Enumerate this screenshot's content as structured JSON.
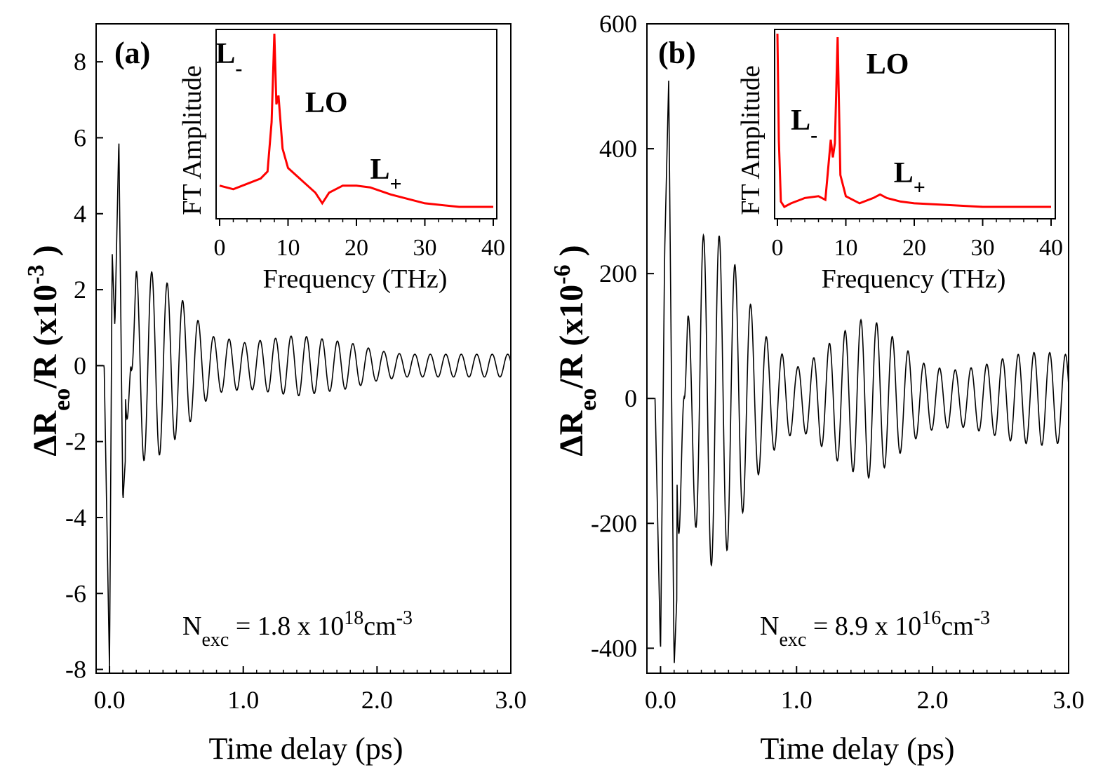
{
  "chart_data": [
    {
      "type": "line",
      "panel_label": "(a)",
      "xlabel": "Time delay (ps)",
      "ylabel": "ΔR_eo/R (x10^-3 )",
      "ylabel_parts": {
        "delta_r": "ΔR",
        "sub": "eo",
        "rest": "/R (x10",
        "exp": "-3",
        "close": " )"
      },
      "xlim": [
        -0.1,
        3.0
      ],
      "ylim": [
        -8.1,
        9.0
      ],
      "xticks": [
        "0.0",
        "1.0",
        "2.0",
        "3.0"
      ],
      "xtick_values": [
        0.0,
        1.0,
        2.0,
        3.0
      ],
      "yticks": [
        "-8",
        "-6",
        "-4",
        "-2",
        "0",
        "2",
        "4",
        "6",
        "8"
      ],
      "ytick_values": [
        -8,
        -6,
        -4,
        -2,
        0,
        2,
        4,
        6,
        8
      ],
      "line_color": "#000000",
      "series": [
        {
          "x": [
            -0.1,
            -0.04,
            0.0,
            0.02,
            0.04,
            0.07,
            0.1,
            0.2,
            0.3,
            0.4,
            0.5,
            0.6,
            0.7,
            0.8,
            0.9,
            1.0,
            1.2,
            1.4,
            1.6,
            1.8,
            2.0,
            2.2,
            2.4,
            2.6,
            2.8,
            3.0
          ],
          "y": [
            0.0,
            0.0,
            -8.0,
            3.0,
            1.0,
            6.0,
            -3.6,
            2.5,
            2.5,
            2.3,
            1.9,
            1.5,
            1.0,
            0.7,
            0.7,
            0.6,
            0.7,
            0.8,
            0.7,
            0.6,
            0.4,
            0.3,
            0.3,
            0.3,
            0.3,
            0.3
          ]
        }
      ],
      "annotation": {
        "prefix": "N",
        "sub": "exc",
        "mid": " = 1.8 x 10",
        "sup1": "18",
        "unit": "cm",
        "sup2": "-3"
      },
      "inset": {
        "xlabel": "Frequency (THz)",
        "ylabel": "FT Amplitude",
        "xlim": [
          0,
          40
        ],
        "xticks": [
          "0",
          "10",
          "20",
          "30",
          "40"
        ],
        "xtick_values": [
          0,
          10,
          20,
          30,
          40
        ],
        "line_color": "#ff0000",
        "x": [
          0,
          2,
          4,
          6,
          7,
          7.6,
          8.0,
          8.3,
          8.6,
          8.9,
          9.2,
          10,
          12,
          14,
          15,
          16,
          18,
          20,
          22,
          25,
          30,
          35,
          40
        ],
        "y": [
          0.14,
          0.12,
          0.15,
          0.18,
          0.22,
          0.5,
          1.0,
          0.6,
          0.65,
          0.5,
          0.35,
          0.24,
          0.17,
          0.1,
          0.04,
          0.1,
          0.14,
          0.14,
          0.13,
          0.09,
          0.04,
          0.02,
          0.02
        ],
        "peak_labels": [
          {
            "base": "L",
            "sub": "-",
            "freq": 2.5
          },
          {
            "base": "LO",
            "sub": "",
            "freq": 12.5
          },
          {
            "base": "L",
            "sub": "+",
            "freq": 22
          }
        ]
      }
    },
    {
      "type": "line",
      "panel_label": "(b)",
      "xlabel": "Time delay (ps)",
      "ylabel": "ΔR_eo/R (x10^-6 )",
      "ylabel_parts": {
        "delta_r": "ΔR",
        "sub": "eo",
        "rest": "/R (x10",
        "exp": "-6",
        "close": " )"
      },
      "xlim": [
        -0.1,
        3.0
      ],
      "ylim": [
        -440,
        600
      ],
      "xticks": [
        "0.0",
        "1.0",
        "2.0",
        "3.0"
      ],
      "xtick_values": [
        0.0,
        1.0,
        2.0,
        3.0
      ],
      "yticks": [
        "-400",
        "-200",
        "0",
        "200",
        "400",
        "600"
      ],
      "ytick_values": [
        -400,
        -200,
        0,
        200,
        400,
        600
      ],
      "line_color": "#000000",
      "series": [
        {
          "x": [
            -0.1,
            -0.04,
            0.0,
            0.03,
            0.06,
            0.1,
            0.2,
            0.3,
            0.4,
            0.5,
            0.6,
            0.7,
            0.8,
            0.9,
            1.0,
            1.1,
            1.2,
            1.3,
            1.4,
            1.5,
            1.6,
            1.7,
            1.8,
            1.9,
            2.0,
            2.2,
            2.4,
            2.6,
            2.8,
            3.0
          ],
          "y": [
            0,
            0,
            -410,
            230,
            510,
            -430,
            130,
            260,
            270,
            240,
            185,
            130,
            90,
            70,
            50,
            60,
            80,
            100,
            115,
            130,
            120,
            100,
            80,
            60,
            50,
            45,
            55,
            70,
            75,
            70
          ]
        }
      ],
      "annotation": {
        "prefix": "N",
        "sub": "exc",
        "mid": " = 8.9 x 10",
        "sup1": "16",
        "unit": "cm",
        "sup2": "-3"
      },
      "inset": {
        "xlabel": "Frequency (THz)",
        "ylabel": "FT Amplitude",
        "xlim": [
          0,
          40
        ],
        "xticks": [
          "0",
          "10",
          "20",
          "30",
          "40"
        ],
        "xtick_values": [
          0,
          10,
          20,
          30,
          40
        ],
        "line_color": "#ff0000",
        "x": [
          0,
          0.2,
          0.5,
          1,
          2,
          4,
          6,
          7,
          7.8,
          8.1,
          8.4,
          8.8,
          9.2,
          10,
          12,
          14,
          15,
          16,
          18,
          20,
          25,
          30,
          35,
          40
        ],
        "y": [
          1.0,
          0.4,
          0.05,
          0.02,
          0.04,
          0.07,
          0.08,
          0.06,
          0.4,
          0.3,
          0.38,
          0.98,
          0.2,
          0.08,
          0.04,
          0.07,
          0.09,
          0.07,
          0.05,
          0.04,
          0.03,
          0.02,
          0.02,
          0.02
        ],
        "peak_labels": [
          {
            "base": "L",
            "sub": "-",
            "freq": 3.5
          },
          {
            "base": "LO",
            "sub": "",
            "freq": 13
          },
          {
            "base": "L",
            "sub": "+",
            "freq": 17
          }
        ]
      }
    }
  ]
}
